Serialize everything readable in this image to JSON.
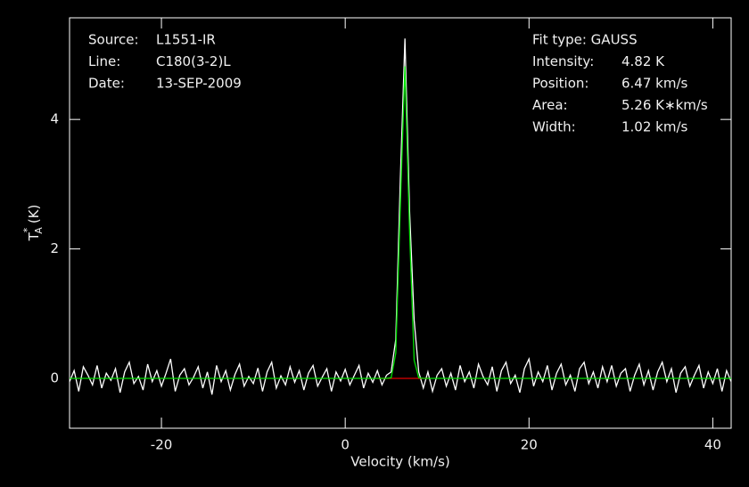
{
  "chart_data": {
    "type": "line",
    "x_label": "Velocity (km/s)",
    "y_label": {
      "symbol": "T",
      "sub": "A",
      "sup": "*",
      "unit": "(K)"
    },
    "info_left": [
      {
        "label": "Source:",
        "value": "L1551-IR"
      },
      {
        "label": "Line:",
        "value": "C180(3-2)L"
      },
      {
        "label": "Date:",
        "value": "13-SEP-2009"
      }
    ],
    "info_right": {
      "title": "Fit type: GAUSS",
      "rows": [
        {
          "label": "Intensity:",
          "value": "4.82 K"
        },
        {
          "label": "Position:",
          "value": "6.47 km/s"
        },
        {
          "label": "Area:",
          "value": "5.26 K∗km/s"
        },
        {
          "label": "Width:",
          "value": "1.02 km/s"
        }
      ]
    },
    "xlim": [
      -30,
      42
    ],
    "ylim": [
      -0.77,
      5.57
    ],
    "xticks": [
      -20,
      0,
      20,
      40
    ],
    "yticks": [
      0,
      2,
      4
    ],
    "x": [
      -30,
      -29.5,
      -29,
      -28.5,
      -28,
      -27.5,
      -27,
      -26.5,
      -26,
      -25.5,
      -25,
      -24.5,
      -24,
      -23.5,
      -23,
      -22.5,
      -22,
      -21.5,
      -21,
      -20.5,
      -20,
      -19.5,
      -19,
      -18.5,
      -18,
      -17.5,
      -17,
      -16.5,
      -16,
      -15.5,
      -15,
      -14.5,
      -14,
      -13.5,
      -13,
      -12.5,
      -12,
      -11.5,
      -11,
      -10.5,
      -10,
      -9.5,
      -9,
      -8.5,
      -8,
      -7.5,
      -7,
      -6.5,
      -6,
      -5.5,
      -5,
      -4.5,
      -4,
      -3.5,
      -3,
      -2.5,
      -2,
      -1.5,
      -1,
      -0.5,
      0,
      0.5,
      1,
      1.5,
      2,
      2.5,
      3,
      3.5,
      4,
      4.5,
      5,
      5.5,
      6,
      6.5,
      7,
      7.5,
      8,
      8.5,
      9,
      9.5,
      10,
      10.5,
      11,
      11.5,
      12,
      12.5,
      13,
      13.5,
      14,
      14.5,
      15,
      15.5,
      16,
      16.5,
      17,
      17.5,
      18,
      18.5,
      19,
      19.5,
      20,
      20.5,
      21,
      21.5,
      22,
      22.5,
      23,
      23.5,
      24,
      24.5,
      25,
      25.5,
      26,
      26.5,
      27,
      27.5,
      28,
      28.5,
      29,
      29.5,
      30,
      30.5,
      31,
      31.5,
      32,
      32.5,
      33,
      33.5,
      34,
      34.5,
      35,
      35.5,
      36,
      36.5,
      37,
      37.5,
      38,
      38.5,
      39,
      39.5,
      40,
      40.5,
      41,
      41.5,
      42
    ],
    "series": [
      {
        "color": "#ffffff",
        "values": [
          -0.05,
          0.12,
          -0.2,
          0.18,
          0.05,
          -0.1,
          0.2,
          -0.15,
          0.08,
          -0.03,
          0.15,
          -0.22,
          0.1,
          0.25,
          -0.08,
          0.03,
          -0.18,
          0.22,
          -0.05,
          0.12,
          -0.12,
          0.08,
          0.3,
          -0.2,
          0.05,
          0.15,
          -0.1,
          0.02,
          0.18,
          -0.15,
          0.1,
          -0.25,
          0.2,
          -0.05,
          0.12,
          -0.18,
          0.06,
          0.22,
          -0.12,
          0.03,
          -0.08,
          0.16,
          -0.2,
          0.1,
          0.25,
          -0.15,
          0.04,
          -0.1,
          0.18,
          -0.06,
          0.12,
          -0.18,
          0.08,
          0.2,
          -0.12,
          0.02,
          0.15,
          -0.2,
          0.1,
          -0.04,
          0.14,
          -0.1,
          0.05,
          0.2,
          -0.15,
          0.08,
          -0.06,
          0.12,
          -0.1,
          0.05,
          0.1,
          0.6,
          3.1,
          5.25,
          2.6,
          0.9,
          0.1,
          -0.15,
          0.1,
          -0.2,
          0.05,
          0.15,
          -0.12,
          0.08,
          -0.18,
          0.2,
          -0.05,
          0.1,
          -0.15,
          0.22,
          0.03,
          -0.1,
          0.18,
          -0.2,
          0.12,
          0.25,
          -0.08,
          0.05,
          -0.22,
          0.15,
          0.3,
          -0.12,
          0.1,
          -0.05,
          0.2,
          -0.18,
          0.08,
          0.22,
          -0.1,
          0.05,
          -0.2,
          0.15,
          0.25,
          -0.08,
          0.1,
          -0.15,
          0.18,
          -0.05,
          0.2,
          -0.12,
          0.08,
          0.15,
          -0.2,
          0.05,
          0.22,
          -0.1,
          0.12,
          -0.18,
          0.1,
          0.25,
          -0.05,
          0.15,
          -0.22,
          0.08,
          0.18,
          -0.12,
          0.05,
          0.2,
          -0.15,
          0.1,
          -0.08,
          0.15,
          -0.2,
          0.12,
          -0.05
        ]
      },
      {
        "color": "#00e000",
        "values": [
          0,
          0,
          0,
          0,
          0,
          0,
          0,
          0,
          0,
          0,
          0,
          0,
          0,
          0,
          0,
          0,
          0,
          0,
          0,
          0,
          0,
          0,
          0,
          0,
          0,
          0,
          0,
          0,
          0,
          0,
          0,
          0,
          0,
          0,
          0,
          0,
          0,
          0,
          0,
          0,
          0,
          0,
          0,
          0,
          0,
          0,
          0,
          0,
          0,
          0,
          0,
          0,
          0,
          0,
          0,
          0,
          0,
          0,
          0,
          0,
          0,
          0,
          0,
          0,
          0,
          0,
          0,
          0,
          0,
          0,
          0.01,
          0.39,
          2.68,
          4.82,
          2.28,
          0.28,
          0.01,
          0,
          0,
          0,
          0,
          0,
          0,
          0,
          0,
          0,
          0,
          0,
          0,
          0,
          0,
          0,
          0,
          0,
          0,
          0,
          0,
          0,
          0,
          0,
          0,
          0,
          0,
          0,
          0,
          0,
          0,
          0,
          0,
          0,
          0,
          0,
          0,
          0,
          0,
          0,
          0,
          0,
          0,
          0,
          0,
          0,
          0,
          0,
          0,
          0,
          0,
          0,
          0,
          0,
          0,
          0,
          0,
          0,
          0,
          0,
          0,
          0,
          0,
          0,
          0,
          0,
          0,
          0,
          0
        ]
      }
    ],
    "baseline": {
      "color": "#e00000",
      "x": [
        3.5,
        9
      ],
      "value": 0
    }
  }
}
